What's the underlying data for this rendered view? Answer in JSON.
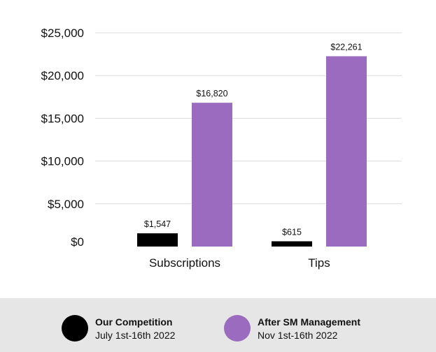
{
  "chart_data": {
    "type": "bar",
    "categories": [
      "Subscriptions",
      "Tips"
    ],
    "series": [
      {
        "name": "Our Competition",
        "period": "July 1st-16th 2022",
        "color": "#000000",
        "values": [
          1547,
          615
        ],
        "labels": [
          "$1,547",
          "$615"
        ]
      },
      {
        "name": "After SM Management",
        "period": "Nov 1st-16th 2022",
        "color": "#9b6bbf",
        "values": [
          16820,
          22261
        ],
        "labels": [
          "$16,820",
          "$22,261"
        ]
      }
    ],
    "ylim": [
      0,
      25000
    ],
    "yticks": [
      0,
      5000,
      10000,
      15000,
      20000,
      25000
    ],
    "ytick_labels": [
      "$0",
      "$5,000",
      "$10,000",
      "$15,000",
      "$20,000",
      "$25,000"
    ],
    "grid": true,
    "legend_position": "bottom"
  }
}
